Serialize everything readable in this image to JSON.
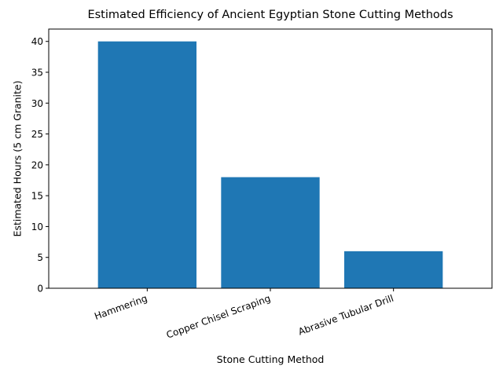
{
  "chart_data": {
    "type": "bar",
    "title": "Estimated Efficiency of Ancient Egyptian Stone Cutting Methods",
    "xlabel": "Stone Cutting Method",
    "ylabel": "Estimated Hours (5 cm Granite)",
    "categories": [
      "Hammering",
      "Copper Chisel Scraping",
      "Abrasive Tubular Drill"
    ],
    "values": [
      40,
      18,
      6
    ],
    "ylim": [
      0,
      42
    ],
    "yticks": [
      0,
      5,
      10,
      15,
      20,
      25,
      30,
      35,
      40
    ],
    "grid": false,
    "legend": null,
    "bar_color": "#1f77b4",
    "xtick_rotation": 20
  }
}
